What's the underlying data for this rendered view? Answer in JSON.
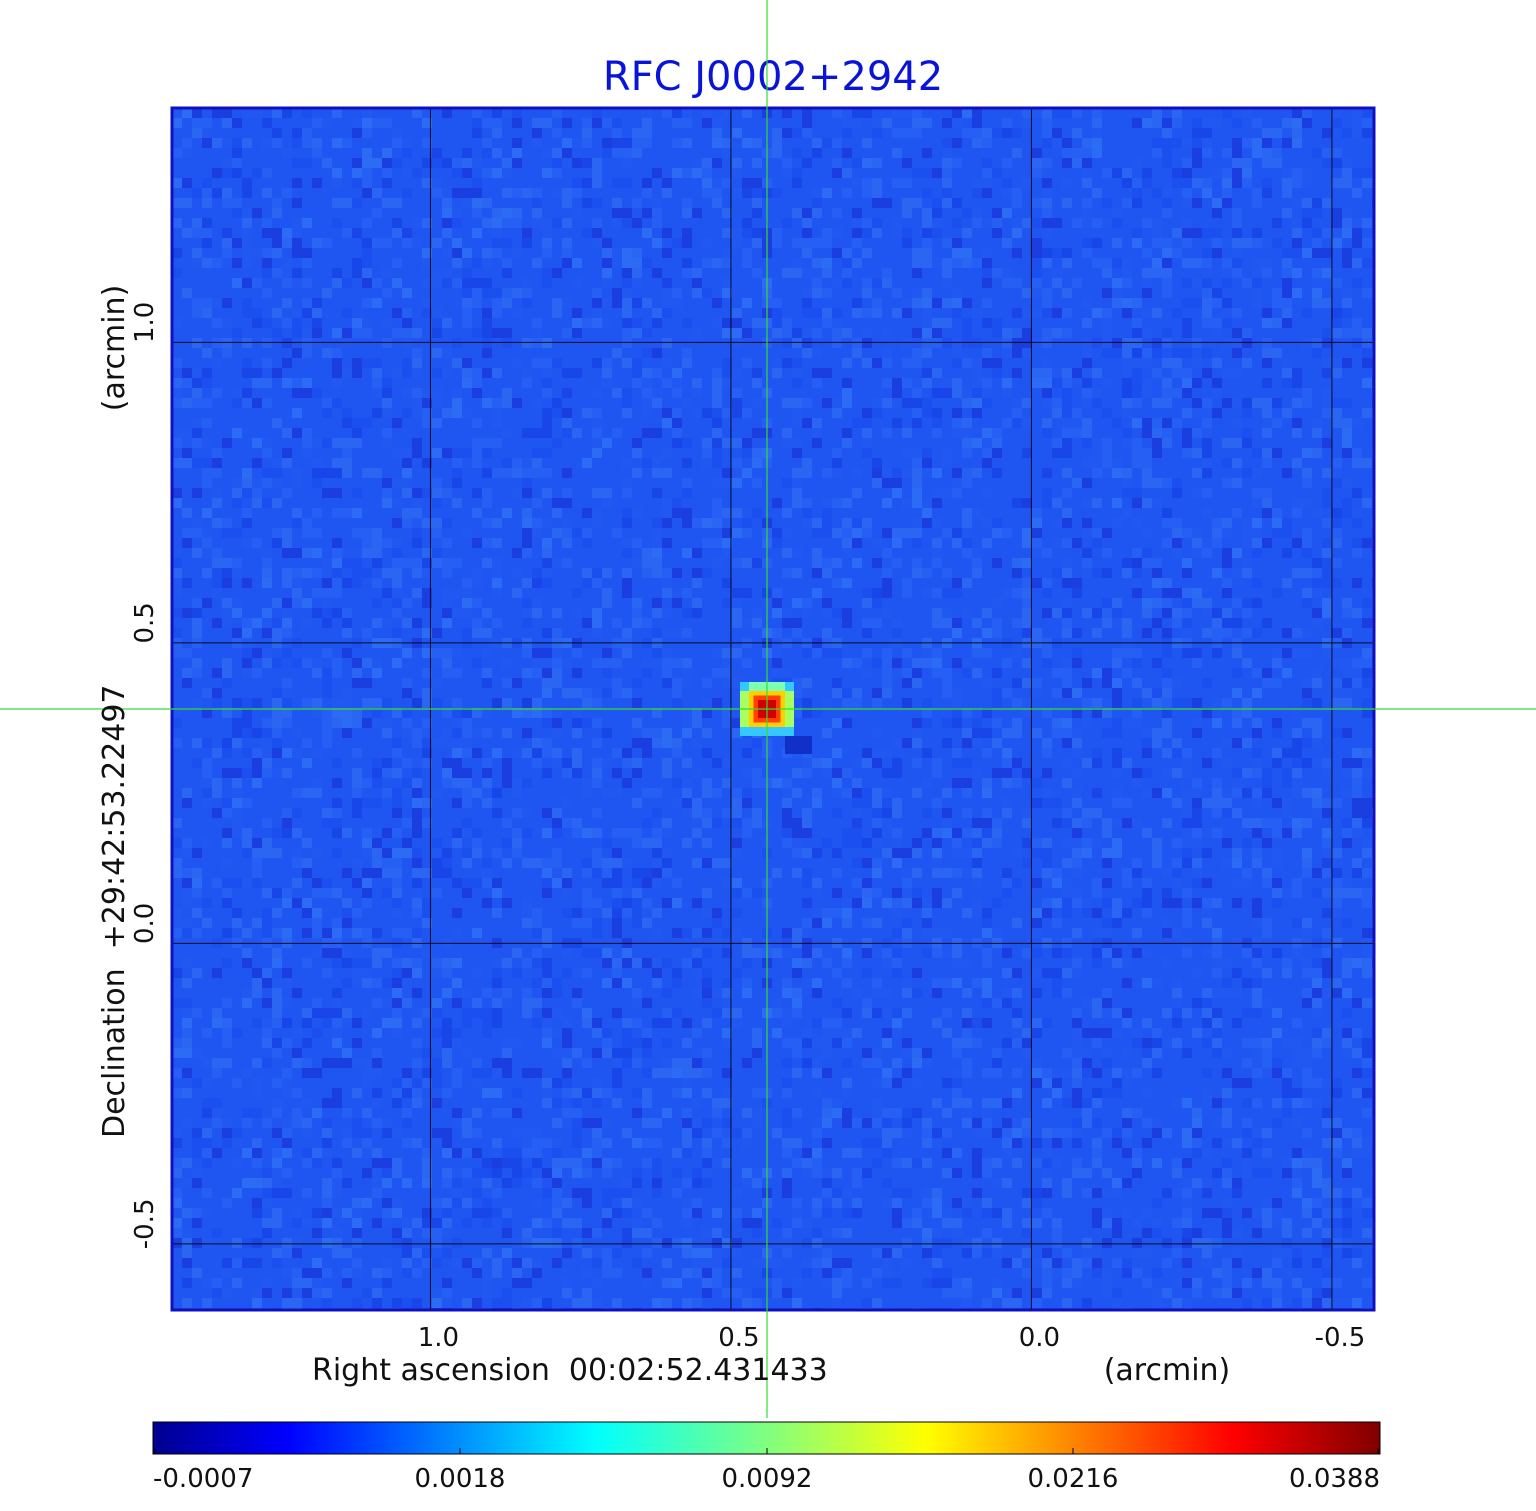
{
  "chart_data": {
    "type": "heatmap",
    "title": "RFC J0002+2942",
    "xlabel": "Right ascension  00:02:52.431433",
    "xunit": "(arcmin)",
    "ylabel": "Declination  +29:42:53.22497",
    "yunit": "(arcmin)",
    "xlim": [
      1.43,
      -0.57
    ],
    "ylim": [
      -0.61,
      1.39
    ],
    "x_ticks": [
      {
        "value": 1.0,
        "label": "1.0"
      },
      {
        "value": 0.5,
        "label": "0.5"
      },
      {
        "value": 0.0,
        "label": "0.0"
      },
      {
        "value": -0.5,
        "label": "-0.5"
      }
    ],
    "y_ticks": [
      {
        "value": 1.0,
        "label": "1.0"
      },
      {
        "value": 0.5,
        "label": "0.5"
      },
      {
        "value": 0.0,
        "label": "0.0"
      },
      {
        "value": -0.5,
        "label": "-0.5"
      }
    ],
    "grid": true,
    "colormap": "jet",
    "source_peak": {
      "x": 0.44,
      "y": 0.39,
      "value": 0.0388
    },
    "crosshair": {
      "x": 0.44,
      "y": 0.39,
      "color": "#33dd33"
    },
    "colorbar": {
      "ticks": [
        {
          "value": -0.0007,
          "label": "-0.0007"
        },
        {
          "value": 0.0018,
          "label": "0.0018"
        },
        {
          "value": 0.0092,
          "label": "0.0092"
        },
        {
          "value": 0.0216,
          "label": "0.0216"
        },
        {
          "value": 0.0388,
          "label": "0.0388"
        }
      ]
    }
  }
}
